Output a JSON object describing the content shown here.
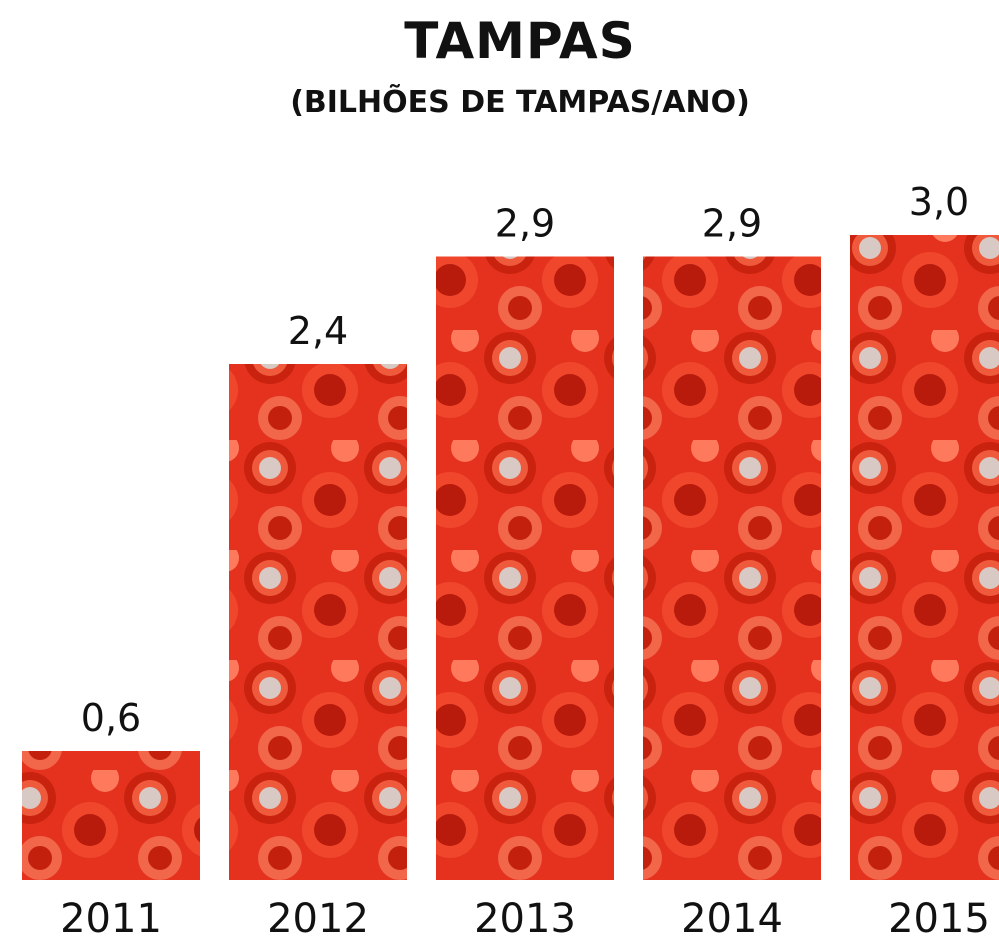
{
  "chart_data": {
    "type": "bar",
    "title": "TAMPAS",
    "subtitle": "(BILHÕES DE TAMPAS/ANO)",
    "categories": [
      "2011",
      "2012",
      "2013",
      "2014",
      "2015"
    ],
    "values": [
      0.6,
      2.4,
      2.9,
      2.9,
      3.0
    ],
    "value_labels": [
      "0,6",
      "2,4",
      "2,9",
      "2,9",
      "3,0"
    ],
    "color": "#e4321f"
  }
}
